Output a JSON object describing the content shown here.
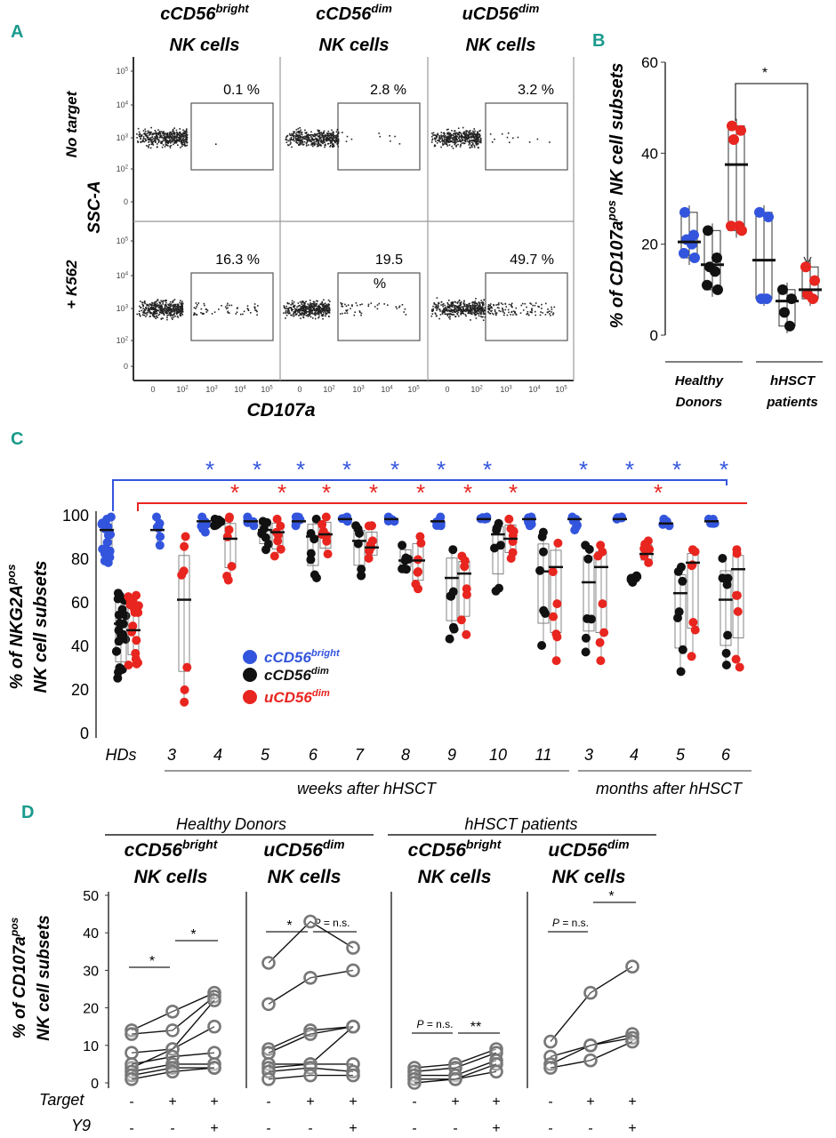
{
  "panels": {
    "A": "A",
    "B": "B",
    "C": "C",
    "D": "D"
  },
  "colors": {
    "bright": "#3355dd",
    "dim": "#111111",
    "udim": "#e8251f",
    "panel": "#1a9a8c"
  },
  "flow": {
    "columns": [
      {
        "main": "cCD56",
        "sup": "bright",
        "sub": "NK cells"
      },
      {
        "main": "cCD56",
        "sup": "dim",
        "sub": "NK cells"
      },
      {
        "main": "uCD56",
        "sup": "dim",
        "sub": "NK cells"
      }
    ],
    "rows": [
      "No target",
      "+ K562"
    ],
    "ylabel": "SSC-A",
    "xlabel": "CD107a",
    "yticks": [
      {
        "b": "10",
        "e": "5"
      },
      {
        "b": "10",
        "e": "4"
      },
      {
        "b": "10",
        "e": "3"
      },
      {
        "b": "10",
        "e": "2"
      },
      {
        "b": "0",
        "e": ""
      }
    ],
    "xticks": [
      {
        "b": "0",
        "e": ""
      },
      {
        "b": "10",
        "e": "2"
      },
      {
        "b": "10",
        "e": "3"
      },
      {
        "b": "10",
        "e": "4"
      },
      {
        "b": "10",
        "e": "5"
      }
    ],
    "percents": [
      [
        "0.1 %",
        "2.8 %",
        "3.2 %"
      ],
      [
        "16.3 %",
        "19.5 %",
        "49.7 %"
      ]
    ]
  },
  "chart_data": [
    {
      "id": "B",
      "type": "scatter",
      "ylabel_main": "% of CD107a",
      "ylabel_sup": "pos",
      "ylabel_tail": " NK cell  subsets",
      "ylim": [
        0,
        60
      ],
      "yticks": [
        "0",
        "20",
        "40",
        "60"
      ],
      "groups": [
        {
          "label_lines": [
            "Healthy",
            "Donors"
          ]
        },
        {
          "label_lines": [
            "hHSCT",
            "patients"
          ]
        }
      ],
      "significance": "*",
      "series": [
        {
          "name": "HD cCD56bright",
          "color": "bright",
          "mean": 20.5,
          "values": [
            27,
            22,
            21,
            20,
            18,
            17
          ]
        },
        {
          "name": "HD cCD56dim",
          "color": "dim",
          "mean": 15.5,
          "values": [
            23,
            17,
            15,
            14,
            11,
            10
          ]
        },
        {
          "name": "HD uCD56dim",
          "color": "udim",
          "mean": 37.5,
          "values": [
            46,
            45,
            43,
            24,
            24,
            23
          ]
        },
        {
          "name": "hHSCT cCD56bright",
          "color": "bright",
          "mean": 16.5,
          "values": [
            27,
            26,
            8,
            8
          ]
        },
        {
          "name": "hHSCT cCD56dim",
          "color": "dim",
          "mean": 7.5,
          "values": [
            10,
            8,
            5,
            2
          ]
        },
        {
          "name": "hHSCT uCD56dim",
          "color": "udim",
          "mean": 10,
          "values": [
            15,
            12,
            9,
            8
          ]
        }
      ]
    },
    {
      "id": "C",
      "type": "scatter",
      "ylabel_main": "% of NKG2A",
      "ylabel_sup": "pos",
      "ylabel2": "NK cell subsets",
      "ylim": [
        0,
        100
      ],
      "yticks": [
        "0",
        "20",
        "40",
        "60",
        "80",
        "100"
      ],
      "categories": [
        "HDs",
        "3",
        "4",
        "5",
        "6",
        "7",
        "8",
        "9",
        "10",
        "11",
        "3",
        "4",
        "5",
        "6"
      ],
      "group_labels": [
        "weeks after hHSCT",
        "months after hHSCT"
      ],
      "legend": [
        {
          "main": "cCD56",
          "sup": "bright",
          "color": "bright"
        },
        {
          "main": "cCD56",
          "sup": "dim",
          "color": "dim"
        },
        {
          "main": "uCD56",
          "sup": "dim",
          "color": "udim"
        }
      ],
      "sig_blue": "*",
      "sig_red": "*",
      "series": [
        {
          "name": "cCD56bright",
          "color": "bright",
          "medians": [
            93,
            93,
            97,
            97,
            97,
            98,
            98,
            97,
            98,
            98,
            98,
            98,
            96,
            97
          ],
          "ranges": [
            [
              78,
              99
            ],
            [
              86,
              99
            ],
            [
              92,
              99
            ],
            [
              95,
              99
            ],
            [
              95,
              99
            ],
            [
              97,
              99
            ],
            [
              97,
              99
            ],
            [
              95,
              99
            ],
            [
              98,
              99
            ],
            [
              95,
              99
            ],
            [
              93,
              99
            ],
            [
              98,
              99
            ],
            [
              95,
              98
            ],
            [
              96,
              98
            ]
          ]
        },
        {
          "name": "cCD56dim",
          "color": "dim",
          "medians": [
            50,
            null,
            96,
            93,
            90,
            88,
            79,
            71,
            91,
            74,
            69,
            71,
            64,
            61
          ],
          "ranges": [
            [
              25,
              64
            ],
            null,
            [
              95,
              98
            ],
            [
              84,
              97
            ],
            [
              71,
              98
            ],
            [
              72,
              95
            ],
            [
              75,
              86
            ],
            [
              43,
              84
            ],
            [
              65,
              96
            ],
            [
              40,
              92
            ],
            [
              37,
              86
            ],
            [
              69,
              72
            ],
            [
              28,
              76
            ],
            [
              31,
              80
            ]
          ]
        },
        {
          "name": "uCD56dim",
          "color": "udim",
          "medians": [
            47,
            61,
            89,
            92,
            91,
            85,
            79,
            73,
            89,
            76,
            76,
            82,
            78,
            75
          ],
          "ranges": [
            [
              31,
              63
            ],
            [
              14,
              90
            ],
            [
              70,
              99
            ],
            [
              81,
              98
            ],
            [
              82,
              99
            ],
            [
              80,
              95
            ],
            [
              66,
              90
            ],
            [
              45,
              81
            ],
            [
              80,
              98
            ],
            [
              33,
              87
            ],
            [
              33,
              86
            ],
            [
              78,
              88
            ],
            [
              35,
              84
            ],
            [
              30,
              84
            ]
          ]
        }
      ]
    },
    {
      "id": "D",
      "type": "line",
      "ylabel_main": "% of CD107a",
      "ylabel_sup": "pos",
      "ylabel2": "NK cell subsets",
      "ylim": [
        0,
        50
      ],
      "yticks": [
        "0",
        "10",
        "20",
        "30",
        "40",
        "50"
      ],
      "group_titles": [
        "Healthy Donors",
        "hHSCT patients"
      ],
      "row_labels": [
        "Target",
        "Y9"
      ],
      "target_signs": [
        "-",
        "+",
        "+"
      ],
      "y9_signs": [
        "-",
        "-",
        "+"
      ],
      "panels": [
        {
          "main": "cCD56",
          "sup": "bright",
          "sub": "NK cells",
          "sig1": "*",
          "sig2": "*",
          "lines": [
            [
              14,
              19,
              24
            ],
            [
              13,
              14,
              23
            ],
            [
              8,
              9,
              15
            ],
            [
              4,
              9,
              22
            ],
            [
              5,
              7,
              8
            ],
            [
              3,
              5,
              5
            ],
            [
              2,
              4,
              4
            ],
            [
              1,
              3,
              4
            ]
          ]
        },
        {
          "main": "uCD56",
          "sup": "dim",
          "sub": "NK cells",
          "sig1": "*",
          "sig2": "P = n.s.",
          "lines": [
            [
              32,
              43,
              36
            ],
            [
              21,
              28,
              30
            ],
            [
              9,
              14,
              15
            ],
            [
              8,
              13,
              15
            ],
            [
              5,
              5,
              15
            ],
            [
              4,
              5,
              5
            ],
            [
              3,
              4,
              3
            ],
            [
              1,
              2,
              2
            ]
          ]
        },
        {
          "main": "cCD56",
          "sup": "bright",
          "sub": "NK cells",
          "sig1": "P = n.s.",
          "sig2": "**",
          "lines": [
            [
              4,
              5,
              9
            ],
            [
              3,
              4,
              8
            ],
            [
              2,
              2,
              6
            ],
            [
              1,
              1,
              5
            ],
            [
              0,
              1,
              3
            ]
          ]
        },
        {
          "main": "uCD56",
          "sup": "dim",
          "sub": "NK cells",
          "sig1": "P = n.s.",
          "sig2": "*",
          "lines": [
            [
              11,
              24,
              31
            ],
            [
              7,
              10,
              13
            ],
            [
              5,
              10,
              12
            ],
            [
              4,
              6,
              11
            ]
          ]
        }
      ]
    }
  ]
}
